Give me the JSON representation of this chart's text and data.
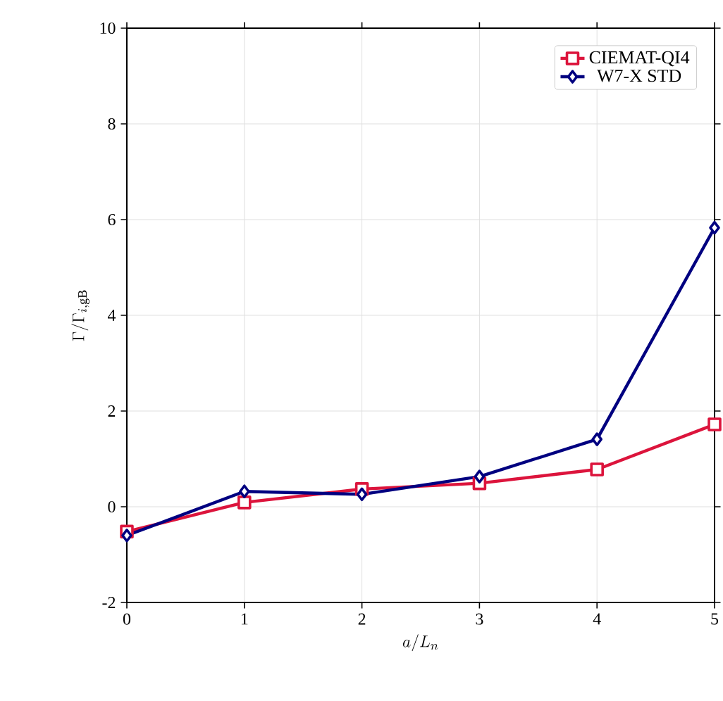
{
  "chart_data": {
    "type": "line",
    "xlabel": "a/L_n",
    "ylabel": "\\Gamma/\\Gamma_{i,\\mathrm{gB}}",
    "x": [
      0,
      1,
      2,
      3,
      4,
      5
    ],
    "series": [
      {
        "name": "CIEMAT-QI4",
        "color": "#dc143c",
        "marker": "square",
        "values": [
          -0.52,
          0.09,
          0.37,
          0.49,
          0.78,
          1.72
        ]
      },
      {
        "name": "W7-X STD",
        "color": "#000080",
        "marker": "diamond",
        "values": [
          -0.6,
          0.32,
          0.26,
          0.63,
          1.41,
          5.83
        ]
      }
    ],
    "xlim": [
      0,
      5
    ],
    "ylim": [
      -2,
      10
    ],
    "xticks": [
      0,
      1,
      2,
      3,
      4,
      5
    ],
    "yticks": [
      -2,
      0,
      2,
      4,
      6,
      8,
      10
    ],
    "grid": true,
    "legend": "top right",
    "line_style": "solid"
  }
}
